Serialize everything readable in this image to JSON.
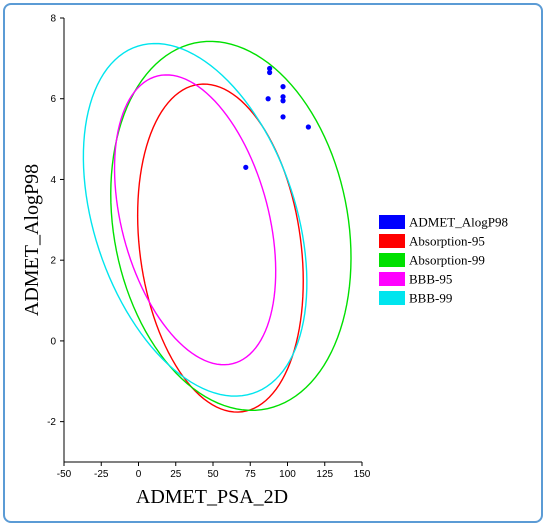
{
  "chart_data": {
    "type": "scatter",
    "title": "",
    "xlabel": "ADMET_PSA_2D",
    "ylabel": "ADMET_AlogP98",
    "xlim": [
      -50,
      150
    ],
    "ylim": [
      -3,
      8
    ],
    "x_ticks": [
      -50,
      -25,
      0,
      25,
      50,
      75,
      100,
      125,
      150
    ],
    "y_ticks": [
      -2,
      0,
      2,
      4,
      6,
      8
    ],
    "grid": false,
    "legend_position": "right",
    "series": [
      {
        "name": "ADMET_AlogP98",
        "kind": "points",
        "color": "#0000ff",
        "points": [
          {
            "x": 88,
            "y": 6.75
          },
          {
            "x": 88,
            "y": 6.65
          },
          {
            "x": 97,
            "y": 6.3
          },
          {
            "x": 97,
            "y": 6.05
          },
          {
            "x": 97,
            "y": 5.95
          },
          {
            "x": 87,
            "y": 6.0
          },
          {
            "x": 97,
            "y": 5.55
          },
          {
            "x": 114,
            "y": 5.3
          },
          {
            "x": 72,
            "y": 4.3
          }
        ]
      },
      {
        "name": "Absorption-95",
        "kind": "ellipse",
        "color": "#ff0000",
        "center": [
          55,
          2.3
        ],
        "semi_axis_1": [
          -28,
          3.85
        ],
        "semi_axis_2": [
          48,
          1.3
        ]
      },
      {
        "name": "Absorption-99",
        "kind": "ellipse",
        "color": "#00e000",
        "center": [
          62,
          2.85
        ],
        "semi_axis_1": [
          -40,
          4.3
        ],
        "semi_axis_2": [
          70,
          1.55
        ]
      },
      {
        "name": "BBB-95",
        "kind": "ellipse",
        "color": "#ff00ff",
        "center": [
          38,
          3.0
        ],
        "semi_axis_1": [
          -30,
          3.5
        ],
        "semi_axis_2": [
          45,
          0.8
        ]
      },
      {
        "name": "BBB-99",
        "kind": "ellipse",
        "color": "#00e5ee",
        "center": [
          38,
          3.0
        ],
        "semi_axis_1": [
          -45,
          4.2
        ],
        "semi_axis_2": [
          60,
          1.2
        ]
      }
    ]
  }
}
